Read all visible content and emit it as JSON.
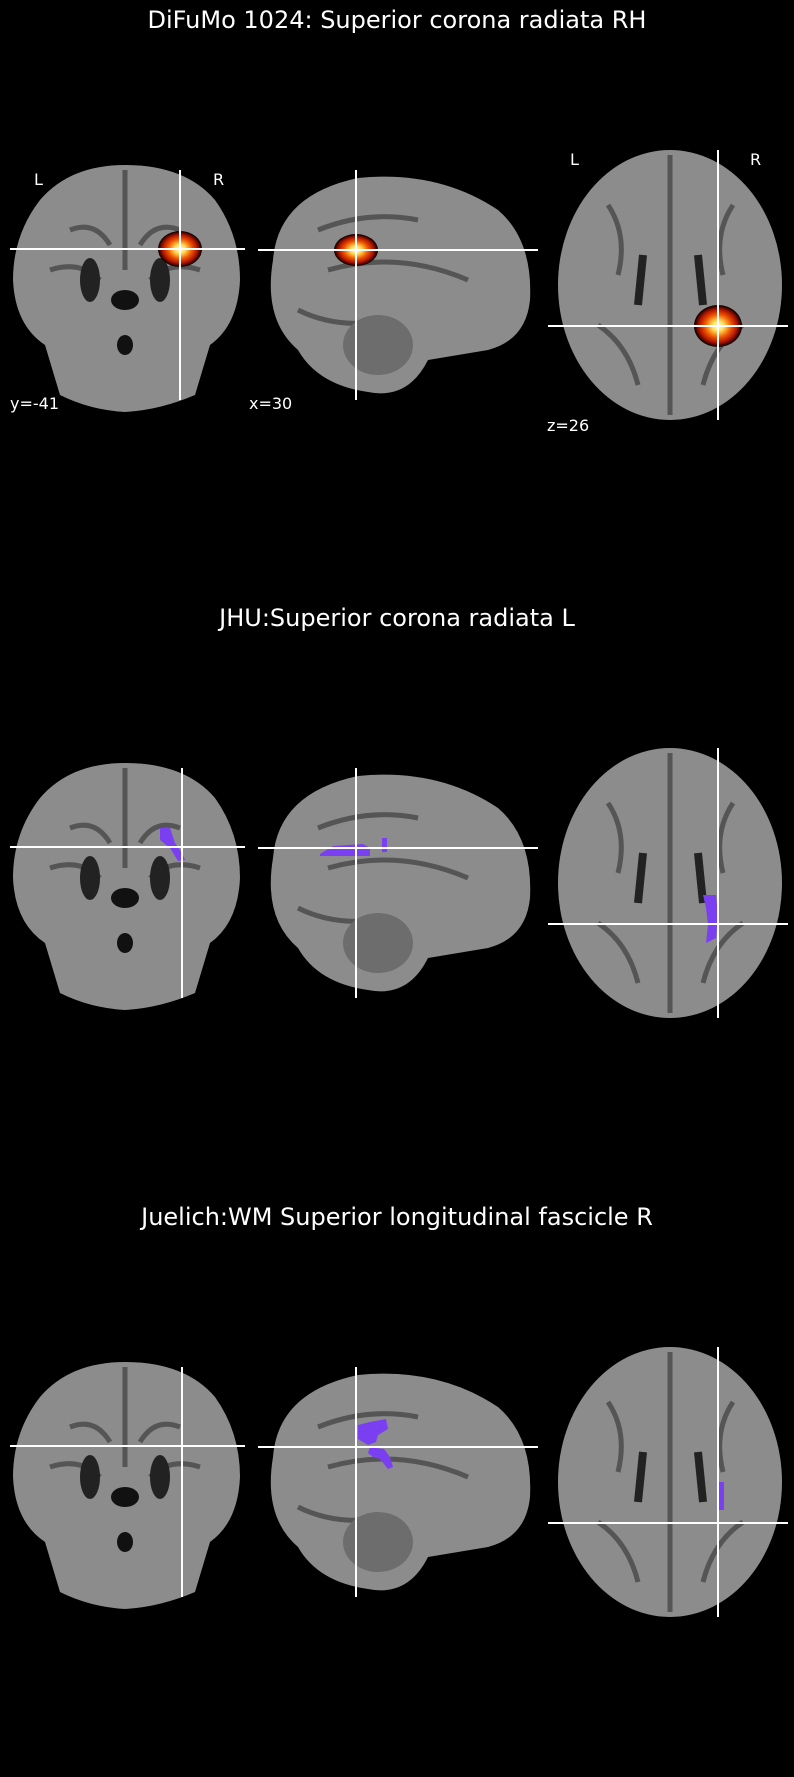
{
  "colors": {
    "background": "#000000",
    "crosshair": "#ffffff",
    "heat_outer": "#000000",
    "heat_mid": "#cc1a00",
    "heat_hot": "#ffaa00",
    "heat_core": "#ffffcc",
    "atlas_region": "#7b3ff2",
    "brain_gray": "#8c8c8c"
  },
  "panels": [
    {
      "title": "DiFuMo 1024: Superior corona radiata RH",
      "overlay": "heatmap",
      "coords": {
        "y": "y=-41",
        "x": "x=30",
        "z": "z=26"
      },
      "orientation": {
        "left": "L",
        "right": "R"
      }
    },
    {
      "title": "JHU:Superior corona radiata L",
      "overlay": "atlas",
      "coords": {},
      "orientation": {}
    },
    {
      "title": "Juelich:WM Superior longitudinal fascicle R",
      "overlay": "atlas",
      "coords": {},
      "orientation": {}
    }
  ]
}
